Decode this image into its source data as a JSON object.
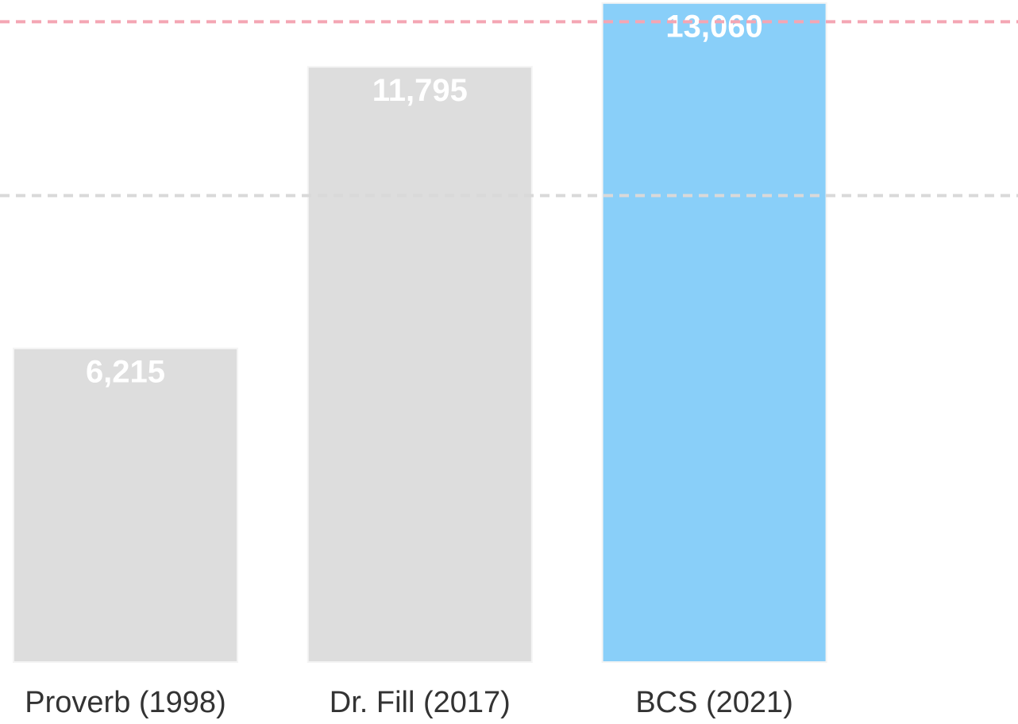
{
  "chart_data": {
    "type": "bar",
    "categories": [
      "Proverb (1998)",
      "Dr. Fill (2017)",
      "BCS (2021)"
    ],
    "values": [
      6215,
      11795,
      13060
    ],
    "value_labels": [
      "6,215",
      "11,795",
      "13,060"
    ],
    "colors": [
      "#dddddd",
      "#dddddd",
      "#89cff9"
    ],
    "ylim": [
      0,
      13120
    ],
    "reference_lines": [
      {
        "value": 12690,
        "color": "#f4a6b4"
      },
      {
        "value": 9245,
        "color": "#d9d9d9"
      }
    ]
  }
}
